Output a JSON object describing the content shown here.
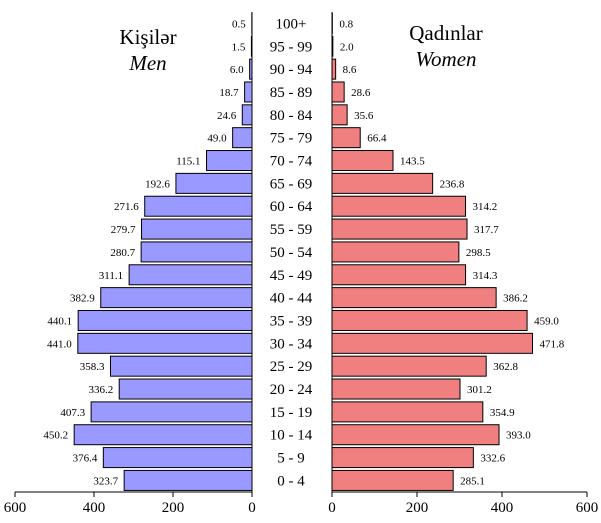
{
  "chart_data": {
    "type": "bar",
    "subtype": "population-pyramid",
    "left_title": "Kişilər",
    "left_subtitle": "Men",
    "right_title": "Qadınlar",
    "right_subtitle": "Women",
    "categories": [
      "100+",
      "95 - 99",
      "90 - 94",
      "85 - 89",
      "80 - 84",
      "75 - 79",
      "70 - 74",
      "65 - 69",
      "60 - 64",
      "55 - 59",
      "50 - 54",
      "45 - 49",
      "40 - 44",
      "35 - 39",
      "30 - 34",
      "25 - 29",
      "20 - 24",
      "15 - 19",
      "10 - 14",
      "5 - 9",
      "0 - 4"
    ],
    "series": [
      {
        "side": "left",
        "color": "#9999ff",
        "values": [
          0.5,
          1.5,
          6.0,
          18.7,
          24.6,
          49.0,
          115.1,
          192.6,
          271.6,
          279.7,
          280.7,
          311.1,
          382.9,
          440.1,
          441.0,
          358.3,
          336.2,
          407.3,
          450.2,
          376.4,
          323.7
        ],
        "labels": [
          "0.5",
          "1.5",
          "6.0",
          "18.7",
          "24.6",
          "49.0",
          "115.1",
          "192.6",
          "271.6",
          "279.7",
          "280.7",
          "311.1",
          "382.9",
          "440.1",
          "441.0",
          "358.3",
          "336.2",
          "407.3",
          "450.2",
          "376.4",
          "323.7"
        ]
      },
      {
        "side": "right",
        "color": "#f08080",
        "values": [
          0.8,
          2.0,
          8.6,
          28.6,
          35.6,
          66.4,
          143.5,
          236.8,
          314.2,
          317.7,
          298.5,
          314.3,
          386.2,
          459.0,
          471.8,
          362.8,
          301.2,
          354.9,
          393.0,
          332.6,
          285.1
        ],
        "labels": [
          "0.8",
          "2.0",
          "8.6",
          "28.6",
          "35.6",
          "66.4",
          "143.5",
          "236.8",
          "314.2",
          "317.7",
          "298.5",
          "314.3",
          "386.2",
          "459.0",
          "471.8",
          "362.8",
          "301.2",
          "354.9",
          "393.0",
          "332.6",
          "285.1"
        ]
      }
    ],
    "left_axis": {
      "range": [
        600,
        0
      ],
      "ticks": [
        "600",
        "400",
        "200",
        "0"
      ]
    },
    "right_axis": {
      "range": [
        0,
        600
      ],
      "ticks": [
        "0",
        "200",
        "400",
        "600"
      ]
    },
    "grid": false,
    "legend": "none"
  }
}
